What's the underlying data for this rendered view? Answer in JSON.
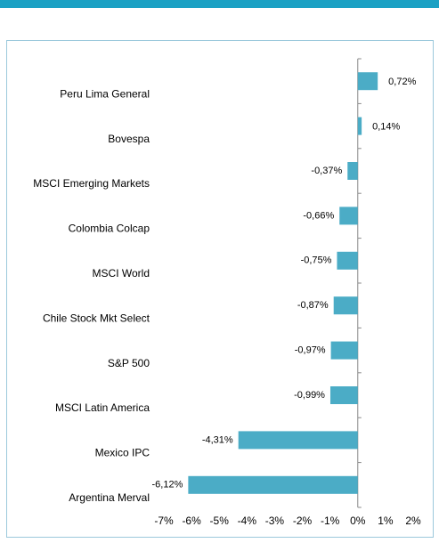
{
  "chart_data": {
    "type": "bar",
    "orientation": "horizontal",
    "categories": [
      "Peru Lima General",
      "Bovespa",
      "MSCI Emerging Markets",
      "Colombia Colcap",
      "MSCI World",
      "Chile Stock Mkt Select",
      "S&P 500",
      "MSCI Latin America",
      "Mexico IPC",
      "Argentina Merval"
    ],
    "values": [
      0.72,
      0.14,
      -0.37,
      -0.66,
      -0.75,
      -0.87,
      -0.97,
      -0.99,
      -4.31,
      -6.12
    ],
    "value_labels": [
      "0,72%",
      "0,14%",
      "-0,37%",
      "-0,66%",
      "-0,75%",
      "-0,87%",
      "-0,97%",
      "-0,99%",
      "-4,31%",
      "-6,12%"
    ],
    "color": "#4bacc6",
    "xlim": [
      -7,
      2
    ],
    "xticks": [
      {
        "value": -7,
        "label": "-7%"
      },
      {
        "value": -6,
        "label": "-6%"
      },
      {
        "value": -5,
        "label": "-5%"
      },
      {
        "value": -4,
        "label": "-4%"
      },
      {
        "value": -3,
        "label": "-3%"
      },
      {
        "value": -2,
        "label": "-2%"
      },
      {
        "value": -1,
        "label": "-1%"
      },
      {
        "value": 0,
        "label": "0%"
      },
      {
        "value": 1,
        "label": "1%"
      },
      {
        "value": 2,
        "label": "2%"
      }
    ],
    "grid": false
  }
}
